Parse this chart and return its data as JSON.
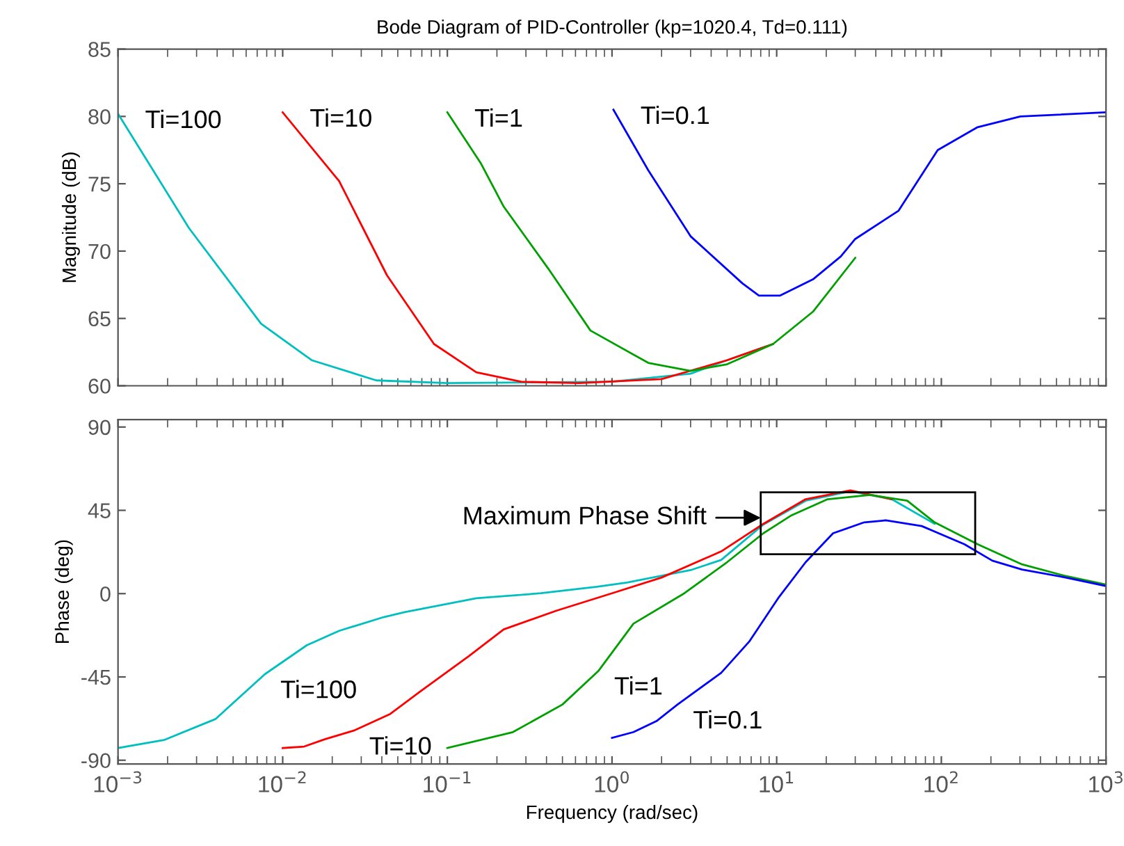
{
  "chart_data": [
    {
      "type": "line",
      "title": "Bode Diagram of PID-Controller (kp=1020.4, Td=0.111)",
      "ylabel": "Magnitude (dB)",
      "log": "x",
      "grid": false,
      "legend": false,
      "tick_labels": "y",
      "xlim": [
        0.001,
        1000
      ],
      "xticks": [
        {
          "value": 0.001,
          "label": null
        },
        {
          "value": 0.01,
          "label": null
        },
        {
          "value": 0.1,
          "label": null
        },
        {
          "value": 1,
          "label": null
        },
        {
          "value": 10,
          "label": null
        },
        {
          "value": 100,
          "label": null
        },
        {
          "value": 1000,
          "label": null
        }
      ],
      "ylim": [
        60,
        85
      ],
      "yticks": [
        60,
        65,
        70,
        75,
        80,
        85
      ],
      "series": [
        {
          "name": "Ti=100",
          "color": "#00bfbf",
          "x": [
            0.001,
            0.0027,
            0.0074,
            0.015,
            0.037,
            0.1,
            1.0,
            3.0,
            5.0,
            9.5
          ],
          "values": [
            80.2,
            71.7,
            64.6,
            61.9,
            60.4,
            60.2,
            60.3,
            60.9,
            61.9,
            63.1
          ]
        },
        {
          "name": "Ti=10",
          "color": "#ff0000",
          "x": [
            0.01,
            0.022,
            0.043,
            0.083,
            0.15,
            0.28,
            0.63,
            2.0,
            5.0,
            9.5
          ],
          "values": [
            80.3,
            75.2,
            68.2,
            63.1,
            61.0,
            60.3,
            60.2,
            60.5,
            61.9,
            63.1
          ]
        },
        {
          "name": "Ti=1",
          "color": "#00a000",
          "x": [
            0.1,
            0.16,
            0.22,
            0.41,
            0.74,
            1.66,
            3.0,
            5.0,
            9.5,
            16.6,
            30
          ],
          "values": [
            80.3,
            76.5,
            73.3,
            68.7,
            64.1,
            61.7,
            61.1,
            61.6,
            63.1,
            65.5,
            69.5
          ]
        },
        {
          "name": "Ti=0.1",
          "color": "#0000ff",
          "x": [
            1.02,
            1.66,
            3.0,
            6.2,
            7.8,
            10.5,
            16.6,
            24.5,
            30,
            55,
            95,
            166,
            302,
            1000
          ],
          "values": [
            80.5,
            76.0,
            71.1,
            67.6,
            66.7,
            66.7,
            67.9,
            69.6,
            70.9,
            73.0,
            77.5,
            79.2,
            80.0,
            80.3
          ]
        }
      ]
    },
    {
      "type": "line",
      "xlabel": "Frequency (rad/sec)",
      "ylabel": "Phase (deg)",
      "log": "x",
      "grid": false,
      "legend": false,
      "xlim": [
        0.001,
        1000
      ],
      "xticks": [
        {
          "value": 0.001,
          "label": "10$^{−3}$"
        },
        {
          "value": 0.01,
          "label": "10$^{−2}$"
        },
        {
          "value": 0.1,
          "label": "10$^{−1}$"
        },
        {
          "value": 1,
          "label": "10$^{0}$"
        },
        {
          "value": 10,
          "label": "10$^{1}$"
        },
        {
          "value": 100,
          "label": "10$^{2}$"
        },
        {
          "value": 1000,
          "label": "10$^{3}$"
        }
      ],
      "ylim": [
        -92,
        94
      ],
      "yticks": [
        -90,
        -45,
        0,
        45,
        90
      ],
      "series": [
        {
          "name": "Ti=100",
          "color": "#00bfbf",
          "x": [
            0.001,
            0.0019,
            0.0039,
            0.0078,
            0.014,
            0.022,
            0.041,
            0.055,
            0.15,
            0.37,
            0.81,
            1.23,
            3.0,
            4.6,
            8.3,
            15,
            28,
            50,
            91
          ],
          "values": [
            -83.4,
            -79.1,
            -67.8,
            -43.5,
            -27.9,
            -20.1,
            -12.7,
            -10.0,
            -2.5,
            0.2,
            3.7,
            6.0,
            12.7,
            18.2,
            37.3,
            50.2,
            55.3,
            51.0,
            37.7
          ]
        },
        {
          "name": "Ti=10",
          "color": "#ff0000",
          "x": [
            0.01,
            0.0135,
            0.018,
            0.027,
            0.045,
            0.068,
            0.135,
            0.22,
            0.46,
            1.0,
            2.0,
            4.6,
            8.3,
            15,
            28,
            50
          ],
          "values": [
            -83.4,
            -82.6,
            -78.7,
            -74.0,
            -65.0,
            -53.0,
            -33.8,
            -19.3,
            -9.2,
            0.2,
            8.7,
            22.8,
            37.7,
            51.0,
            55.8,
            51.0
          ]
        },
        {
          "name": "Ti=1",
          "color": "#00a000",
          "x": [
            0.1,
            0.25,
            0.5,
            0.83,
            1.35,
            2.75,
            5.0,
            8.3,
            12.3,
            20.4,
            37,
            62,
            91,
            166,
            309,
            562,
            1000
          ],
          "values": [
            -83.4,
            -74.8,
            -59.9,
            -41.6,
            -16.2,
            0.2,
            17.0,
            32.6,
            42.3,
            51.0,
            53.3,
            50.2,
            38.5,
            26.7,
            15.8,
            9.6,
            4.9
          ]
        },
        {
          "name": "Ti=0.1",
          "color": "#0000ff",
          "x": [
            1.0,
            1.35,
            1.86,
            2.5,
            4.6,
            6.8,
            10.2,
            15,
            22,
            34,
            46,
            76,
            138,
            204,
            309,
            562,
            1000
          ],
          "values": [
            -77.9,
            -74.8,
            -68.9,
            -59.9,
            -42.8,
            -26.0,
            -2.5,
            17.0,
            32.6,
            38.5,
            39.6,
            36.5,
            26.7,
            17.8,
            13.0,
            8.8,
            4.1
          ]
        }
      ],
      "annotations": [
        {
          "text": "Maximum Phase Shift",
          "x": 8.0,
          "y": 41
        }
      ]
    }
  ]
}
